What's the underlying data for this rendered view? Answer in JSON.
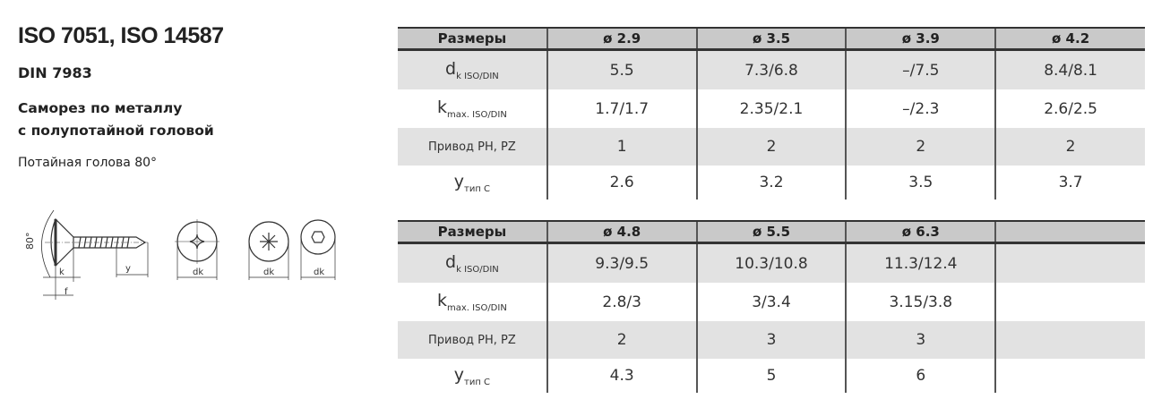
{
  "title": "ISO 7051, ISO 14587",
  "standard": "DIN 7983",
  "description_line1": "Саморез по металлу",
  "description_line2": "с полупотайной головой",
  "head_note": "Потайная голова 80°",
  "drawing_labels": {
    "angle": "80°",
    "k": "k",
    "f": "f",
    "y": "y",
    "dk": "dk"
  },
  "row_labels": {
    "sizes": "Размеры",
    "dk_main": "d",
    "dk_sub": "k ISO/DIN",
    "k_main": "k",
    "k_sub": "max. ISO/DIN",
    "drive": "Привод PH, PZ",
    "y_main": "y",
    "y_sub": "тип C"
  },
  "table1": {
    "headers": [
      "ø 2.9",
      "ø 3.5",
      "ø 3.9",
      "ø 4.2"
    ],
    "dk": [
      "5.5",
      "7.3/6.8",
      "–/7.5",
      "8.4/8.1"
    ],
    "k": [
      "1.7/1.7",
      "2.35/2.1",
      "–/2.3",
      "2.6/2.5"
    ],
    "drive": [
      "1",
      "2",
      "2",
      "2"
    ],
    "y": [
      "2.6",
      "3.2",
      "3.5",
      "3.7"
    ]
  },
  "table2": {
    "headers": [
      "ø 4.8",
      "ø 5.5",
      "ø 6.3",
      ""
    ],
    "dk": [
      "9.3/9.5",
      "10.3/10.8",
      "11.3/12.4",
      ""
    ],
    "k": [
      "2.8/3",
      "3/3.4",
      "3.15/3.8",
      ""
    ],
    "drive": [
      "2",
      "3",
      "3",
      ""
    ],
    "y": [
      "4.3",
      "5",
      "6",
      ""
    ]
  }
}
